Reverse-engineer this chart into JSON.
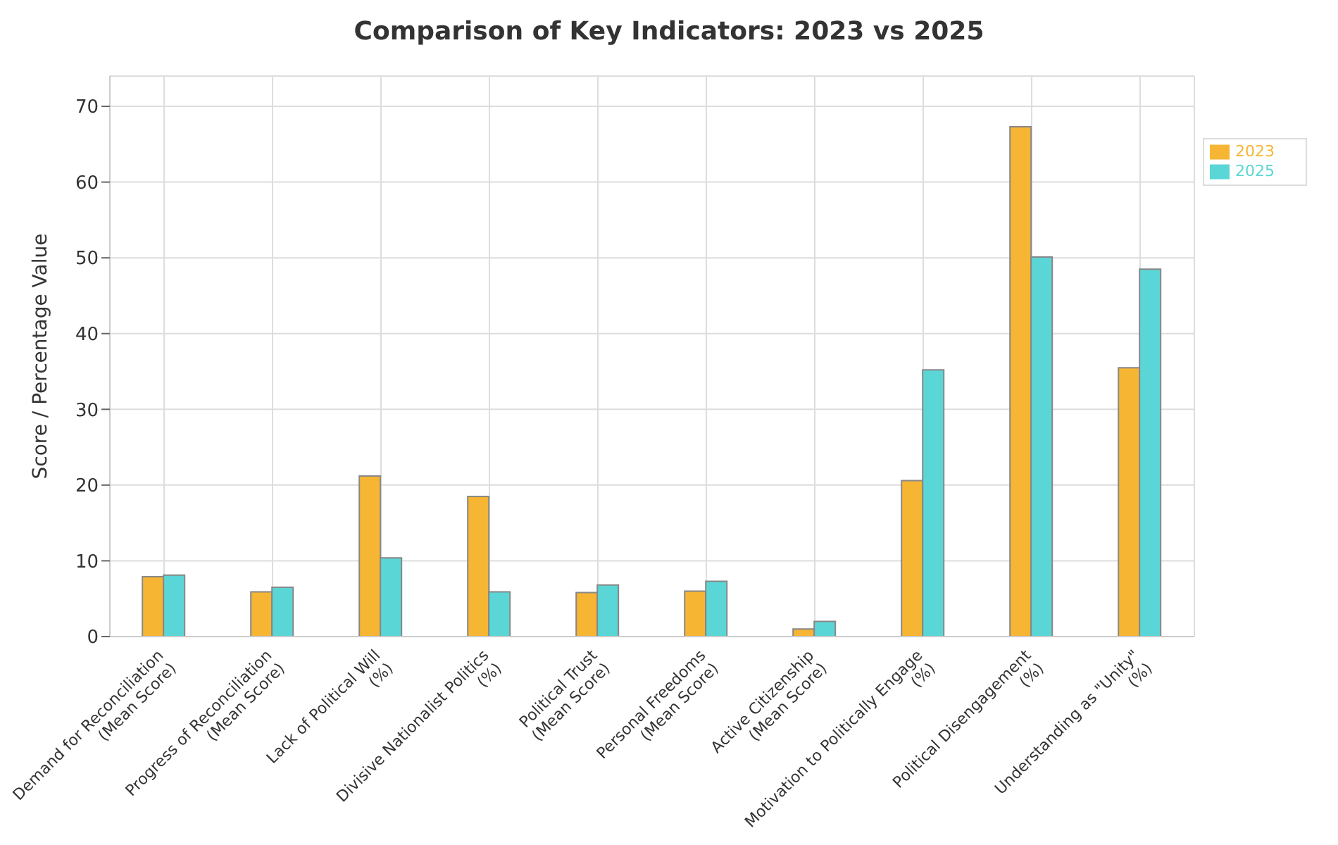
{
  "chart_data": {
    "type": "bar",
    "title": "Comparison of Key Indicators: 2023 vs 2025",
    "ylabel": "Score / Percentage Value",
    "categories": [
      "Demand for Reconciliation\n(Mean Score)",
      "Progress of Reconciliation\n(Mean Score)",
      "Lack of Political Will\n(%)",
      "Divisive Nationalist Politics\n(%)",
      "Political Trust\n(Mean Score)",
      "Personal Freedoms\n(Mean Score)",
      "Active Citizenship\n(Mean Score)",
      "Motivation to Politically Engage\n(%)",
      "Political Disengagement\n(%)",
      "Understanding as \"Unity\"\n(%)"
    ],
    "series": [
      {
        "name": "2023",
        "color": "#f7b534",
        "values": [
          7.9,
          5.9,
          21.2,
          18.5,
          5.8,
          6.0,
          1.0,
          20.6,
          67.3,
          35.5
        ]
      },
      {
        "name": "2025",
        "color": "#5bd6d6",
        "values": [
          8.1,
          6.5,
          10.4,
          5.9,
          6.8,
          7.3,
          2.0,
          35.2,
          50.1,
          48.5
        ]
      }
    ],
    "ylim": [
      0,
      74
    ],
    "yticks": [
      0,
      10,
      20,
      30,
      40,
      50,
      60,
      70
    ],
    "grid": true,
    "legend": "top right"
  }
}
